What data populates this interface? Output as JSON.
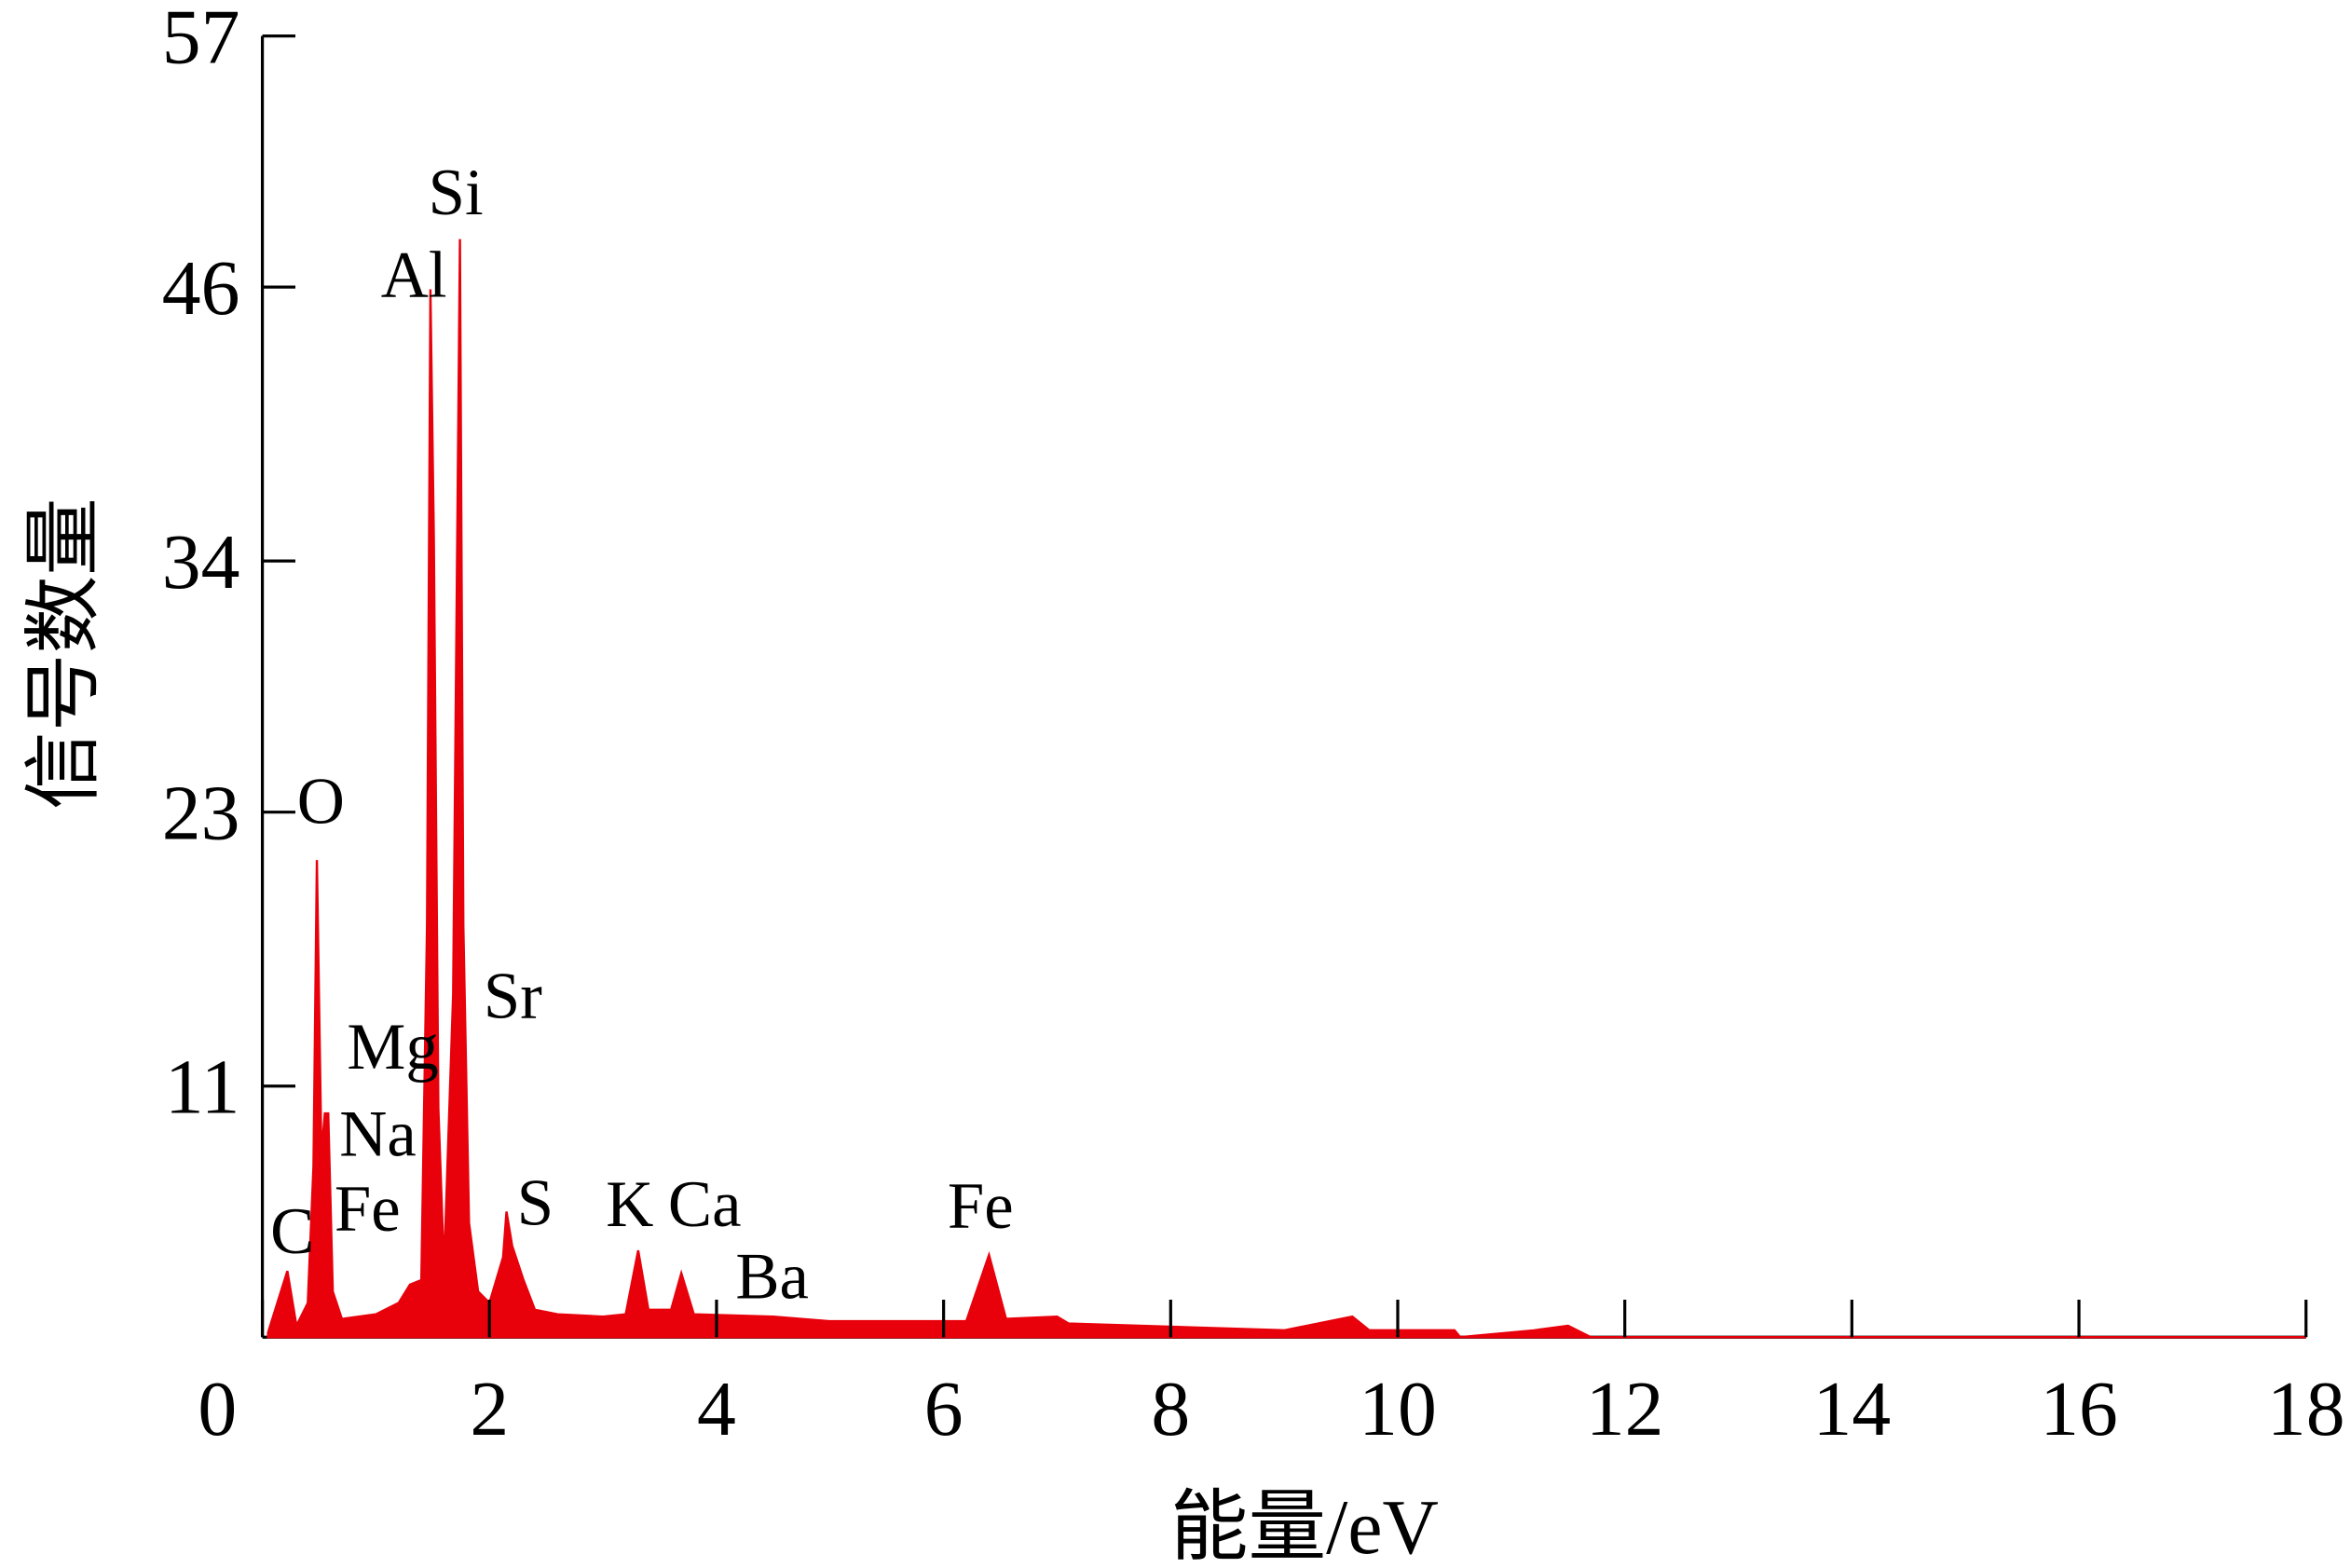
{
  "chart_data": {
    "type": "area",
    "x_label": "能量/eV",
    "y_label": "信号数量",
    "x": [
      0.05,
      0.22,
      0.3,
      0.4,
      0.45,
      0.48,
      0.52,
      0.55,
      0.58,
      0.62,
      0.7,
      1.0,
      1.2,
      1.3,
      1.4,
      1.45,
      1.48,
      1.51,
      1.55,
      1.6,
      1.68,
      1.72,
      1.74,
      1.77,
      1.82,
      1.9,
      2.0,
      2.12,
      2.15,
      2.2,
      2.3,
      2.4,
      2.6,
      3.0,
      3.2,
      3.31,
      3.4,
      3.6,
      3.69,
      3.8,
      4.5,
      5.0,
      6.2,
      6.4,
      6.55,
      7.0,
      7.1,
      9.0,
      9.6,
      9.75,
      10.5,
      10.55,
      11.2,
      11.5,
      11.7,
      18
    ],
    "values": [
      0.2,
      2.9,
      0.5,
      1.5,
      7.5,
      20.9,
      8,
      9.8,
      9.8,
      2,
      0.8,
      1,
      1.5,
      2.3,
      2.5,
      18,
      45.9,
      35,
      10,
      3,
      15,
      37,
      48.1,
      18,
      5,
      2,
      1.5,
      3.5,
      5.5,
      4,
      2.5,
      1.2,
      1,
      0.9,
      1,
      3.8,
      1.2,
      1.2,
      2.8,
      1,
      0.9,
      0.7,
      0.7,
      3.6,
      0.8,
      0.9,
      0.6,
      0.3,
      0.9,
      0.3,
      0.3,
      0,
      0.3,
      0.5,
      0,
      0
    ],
    "color": "#e8000b",
    "xlim": [
      0,
      18
    ],
    "xticks": [
      0,
      2,
      4,
      6,
      8,
      10,
      12,
      14,
      16,
      18
    ],
    "ylim": [
      0,
      57
    ],
    "yticks": [
      11,
      23,
      34,
      46,
      57
    ],
    "annotations": [
      "C",
      "O",
      "Al",
      "Si",
      "Sr",
      "Mg",
      "Na",
      "Fe",
      "S",
      "K",
      "Ca",
      "Ba",
      "Fe"
    ]
  }
}
